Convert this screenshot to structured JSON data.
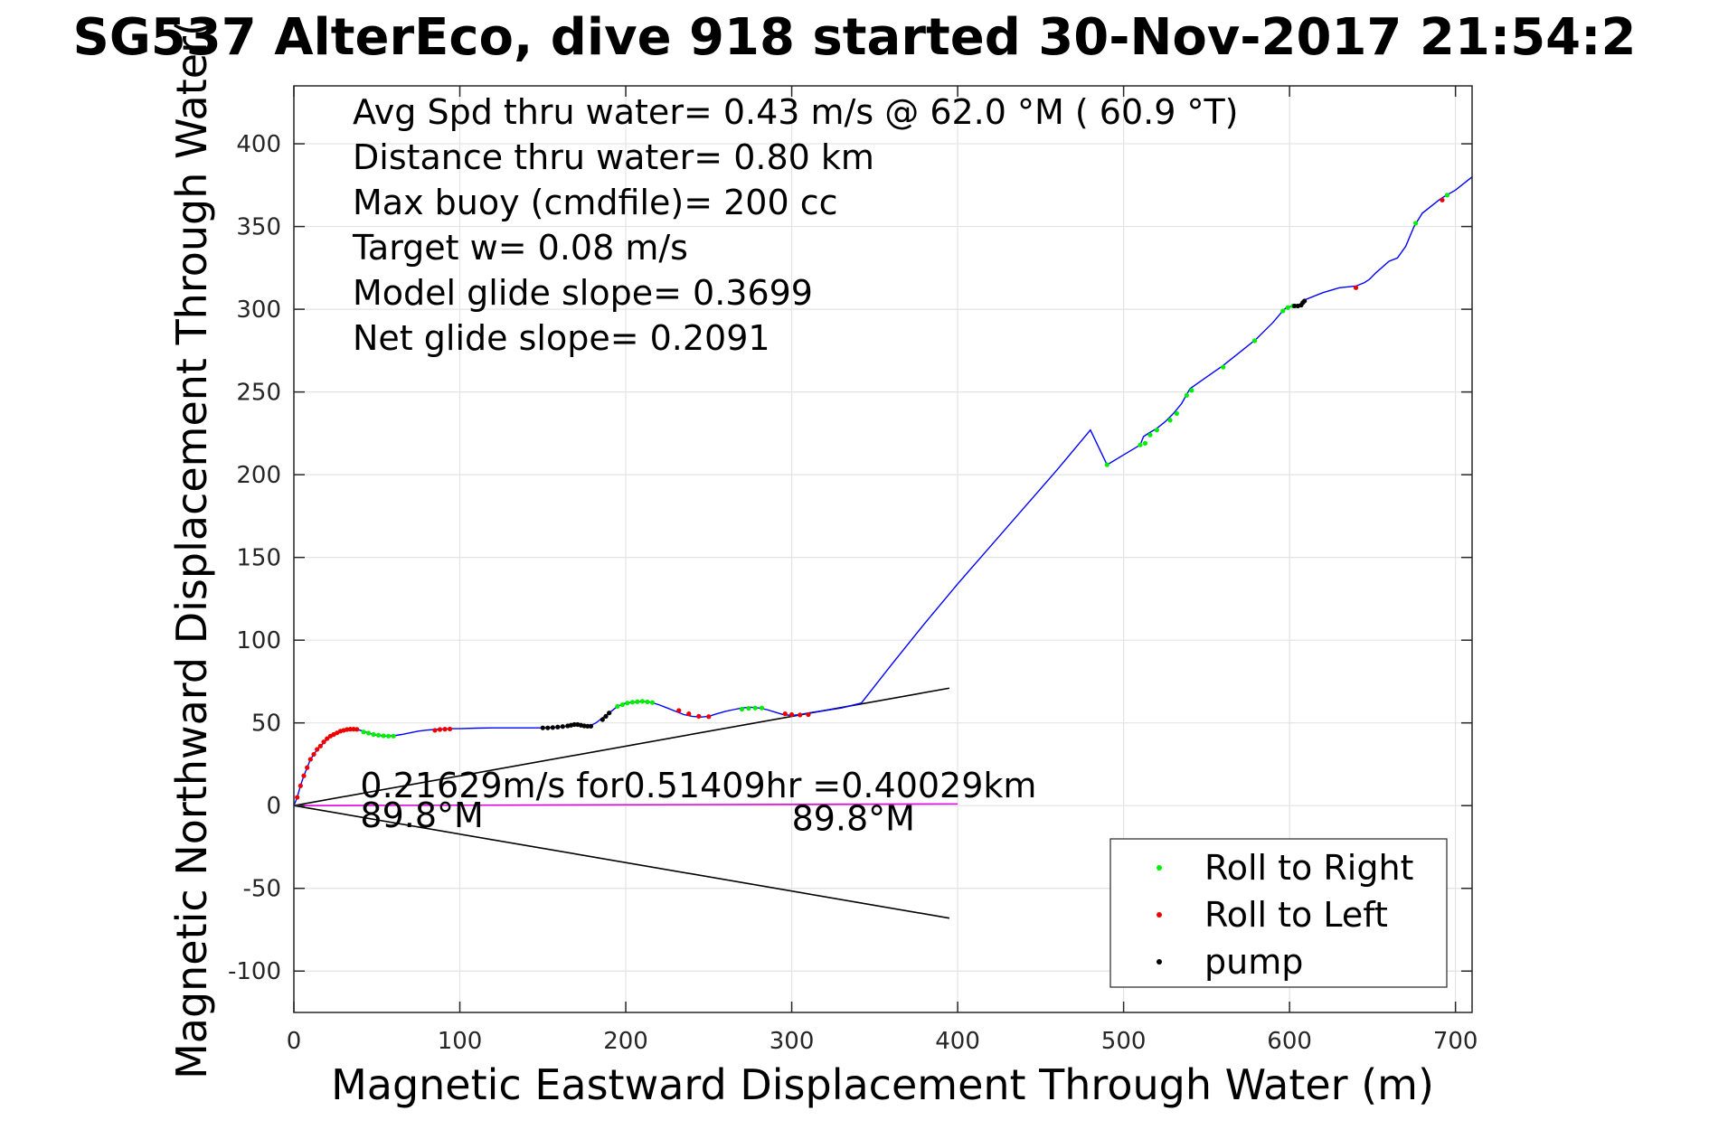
{
  "chart_data": {
    "type": "scatter",
    "title": "SG537 AlterEco, dive 918 started 30-Nov-2017 21:54:2",
    "xlabel": "Magnetic Eastward Displacement Through Water (m)",
    "ylabel": "Magnetic Northward Displacement Through Water(",
    "xlim": [
      0,
      710
    ],
    "ylim": [
      -125,
      435
    ],
    "xticks": [
      0,
      100,
      200,
      300,
      400,
      500,
      600,
      700
    ],
    "yticks": [
      -100,
      -50,
      0,
      50,
      100,
      150,
      200,
      250,
      300,
      350,
      400
    ],
    "xtick_labels": [
      "0",
      "100",
      "200",
      "300",
      "400",
      "500",
      "600",
      "700"
    ],
    "ytick_labels": [
      "-100",
      "-50",
      "0",
      "50",
      "100",
      "150",
      "200",
      "250",
      "300",
      "350",
      "400"
    ],
    "grid": true,
    "legend_position": "bottom-right",
    "info_lines": [
      "Avg Spd thru water=  0.43 m/s @  62.0 °M ( 60.9 °T)",
      "Distance thru water=  0.80 km",
      "Max buoy (cmdfile)= 200 cc",
      "Target w= 0.08 m/s",
      "Model glide slope= 0.3699",
      "Net glide slope= 0.2091"
    ],
    "annotations": [
      {
        "text": "0.21629m/s for0.51409hr =0.40029km",
        "x": 40,
        "y": 5
      },
      {
        "text": "89.8°M",
        "x": 40,
        "y": -13
      },
      {
        "text": "89.8°M",
        "x": 300,
        "y": -15
      }
    ],
    "reference_lines": [
      {
        "x": [
          0,
          395
        ],
        "y": [
          0,
          71
        ],
        "color": "#000000"
      },
      {
        "x": [
          0,
          395
        ],
        "y": [
          0,
          -68
        ],
        "color": "#000000"
      },
      {
        "x": [
          0,
          400
        ],
        "y": [
          0,
          1
        ],
        "color": "#e000e0"
      }
    ],
    "track": {
      "color": "#0000ff",
      "x": [
        0,
        2,
        4,
        6,
        8,
        10,
        12,
        15,
        18,
        21,
        24,
        27,
        30,
        34,
        38,
        42,
        46,
        50,
        55,
        60,
        65,
        70,
        75,
        80,
        85,
        90,
        95,
        100,
        110,
        120,
        130,
        140,
        150,
        160,
        165,
        170,
        175,
        178,
        182,
        186,
        190,
        195,
        200,
        205,
        210,
        215,
        220,
        225,
        230,
        235,
        240,
        245,
        250,
        255,
        260,
        265,
        270,
        275,
        280,
        285,
        290,
        295,
        300,
        305,
        310,
        320,
        330,
        342,
        360,
        380,
        400,
        420,
        440,
        460,
        480,
        490,
        500,
        510,
        512,
        515,
        520,
        525,
        530,
        535,
        540,
        550,
        560,
        570,
        580,
        590,
        595,
        598,
        602,
        606,
        608,
        610,
        620,
        630,
        640,
        645,
        648,
        652,
        660,
        665,
        670,
        675,
        680,
        690,
        693,
        700,
        710
      ],
      "y": [
        0,
        5,
        12,
        18,
        23,
        28,
        31,
        35,
        38,
        41,
        43,
        44.5,
        45.5,
        46.2,
        46,
        45,
        43.5,
        42.5,
        42,
        42.2,
        43,
        44,
        45,
        45.6,
        46,
        46.3,
        46.5,
        46.5,
        46.8,
        47,
        47,
        47,
        47,
        47.5,
        48,
        49,
        48.5,
        48,
        50,
        53,
        56,
        60,
        62,
        62.5,
        63,
        62.5,
        61,
        59,
        57,
        55,
        54,
        53.5,
        54,
        55.5,
        57,
        58,
        59,
        59.5,
        59,
        58,
        56.5,
        55,
        54.5,
        55,
        56,
        57.5,
        59,
        62,
        85,
        110,
        134,
        157,
        180,
        203,
        227,
        206,
        212,
        218,
        223,
        225,
        228,
        232,
        237,
        243,
        252,
        259,
        266,
        274,
        282,
        292,
        298,
        301,
        302,
        302,
        303,
        306,
        310,
        313,
        314,
        316,
        318,
        322,
        329,
        331,
        338,
        350,
        358,
        366,
        368,
        372,
        380
      ]
    },
    "series": [
      {
        "name": "Roll to Right",
        "color": "#00ee00",
        "x": [
          42,
          45,
          48,
          51,
          54,
          57,
          60,
          195,
          198,
          201,
          204,
          207,
          210,
          213,
          216,
          270,
          274,
          278,
          282,
          490,
          510,
          513,
          516,
          520,
          528,
          532,
          538,
          541,
          560,
          579,
          596,
          599,
          602,
          605,
          676,
          695
        ],
        "y": [
          44.5,
          43.8,
          43,
          42.6,
          42.2,
          42,
          42,
          60,
          61,
          62,
          62.5,
          62.8,
          63,
          62.7,
          62.3,
          58.3,
          58.8,
          59,
          59,
          206,
          218,
          219,
          224,
          227,
          233,
          237,
          248,
          251,
          265,
          281,
          299,
          301,
          302,
          302,
          352,
          369
        ]
      },
      {
        "name": "Roll to Left",
        "color": "#ee0000",
        "x": [
          2,
          4,
          6,
          8,
          10,
          12,
          14,
          16,
          18,
          20,
          22,
          24,
          26,
          28,
          30,
          32,
          34,
          36,
          38,
          85,
          88,
          91,
          94,
          232,
          238,
          244,
          250,
          296,
          300,
          305,
          310,
          640,
          692
        ],
        "y": [
          5,
          12,
          18,
          23,
          28,
          31,
          34,
          36,
          38.5,
          40.5,
          42,
          43,
          44,
          45,
          45.5,
          46,
          46.2,
          46.2,
          46.1,
          45.5,
          46,
          46.2,
          46.3,
          57.5,
          55.5,
          54,
          53.8,
          55.5,
          55,
          54.8,
          55,
          313,
          366
        ]
      },
      {
        "name": "pump",
        "color": "#000000",
        "x": [
          150,
          153,
          156,
          159,
          162,
          165,
          167,
          169,
          171,
          173,
          175,
          177,
          179,
          186,
          188,
          190,
          603,
          605,
          607,
          608,
          609
        ],
        "y": [
          47,
          47,
          47.2,
          47.5,
          47.8,
          48.2,
          48.6,
          49,
          49,
          48.6,
          48.2,
          48,
          48,
          52,
          54,
          56,
          302,
          302,
          302.5,
          304,
          305
        ]
      }
    ]
  }
}
